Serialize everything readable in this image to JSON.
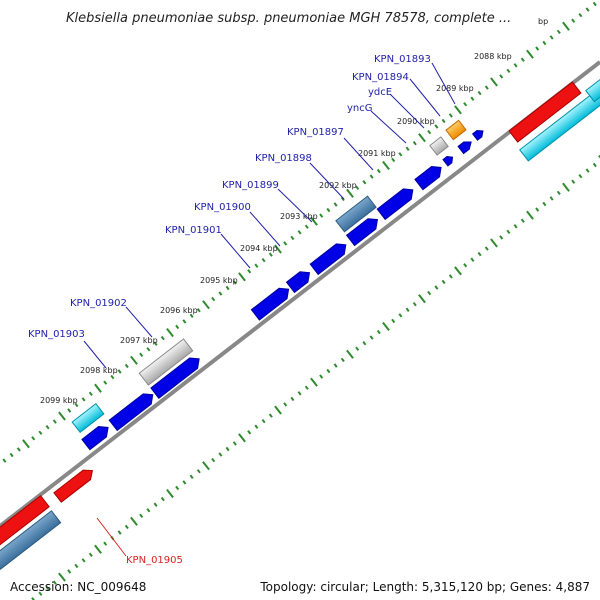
{
  "title": "Klebsiella pneumoniae subsp. pneumoniae MGH 78578, complete ...",
  "footer": {
    "accession": "Accession: NC_009648",
    "summary": "Topology: circular; Length: 5,315,120 bp; Genes: 4,887"
  },
  "colors": {
    "backbone": "#777777",
    "tick": "#2e8b2e",
    "cds": "#0000e6",
    "gene_label": "#2222aa",
    "highlight_label": "#dd2222"
  },
  "tick_labels": [
    "bp",
    "2088 kbp",
    "2089 kbp",
    "2090 kbp",
    "2091 kbp",
    "2092 kbp",
    "2093 kbp",
    "2094 kbp",
    "2095 kbp",
    "2096 kbp",
    "2097 kbp",
    "2098 kbp",
    "2099 kbp"
  ],
  "gene_labels": [
    "KPN_01893",
    "KPN_01894",
    "ydcE",
    "yncG",
    "KPN_01897",
    "KPN_01898",
    "KPN_01899",
    "KPN_01900",
    "KPN_01901",
    "KPN_01902",
    "KPN_01903",
    "KPN_01905"
  ]
}
